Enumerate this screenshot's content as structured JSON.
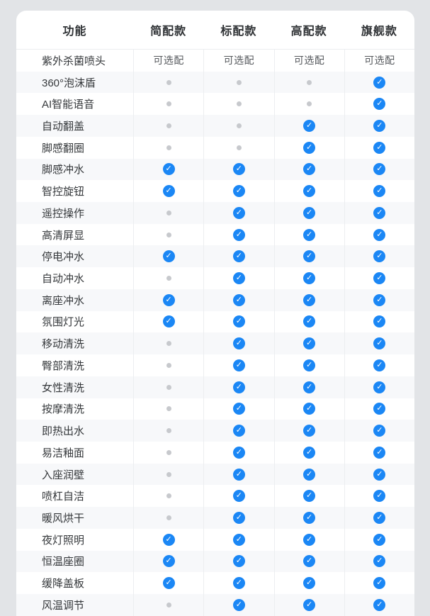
{
  "table": {
    "columns": [
      "功能",
      "简配款",
      "标配款",
      "高配款",
      "旗舰款"
    ],
    "optional_label": "可选配",
    "rows": [
      {
        "label": "紫外杀菌喷头",
        "values": [
          "可选配",
          "可选配",
          "可选配",
          "可选配"
        ]
      },
      {
        "label": "360°泡沫盾",
        "values": [
          "dot",
          "dot",
          "dot",
          "check"
        ]
      },
      {
        "label": "AI智能语音",
        "values": [
          "dot",
          "dot",
          "dot",
          "check"
        ]
      },
      {
        "label": "自动翻盖",
        "values": [
          "dot",
          "dot",
          "check",
          "check"
        ]
      },
      {
        "label": "脚感翻圈",
        "values": [
          "dot",
          "dot",
          "check",
          "check"
        ]
      },
      {
        "label": "脚感冲水",
        "values": [
          "check",
          "check",
          "check",
          "check"
        ]
      },
      {
        "label": "智控旋钮",
        "values": [
          "check",
          "check",
          "check",
          "check"
        ]
      },
      {
        "label": "遥控操作",
        "values": [
          "dot",
          "check",
          "check",
          "check"
        ]
      },
      {
        "label": "高清屏显",
        "values": [
          "dot",
          "check",
          "check",
          "check"
        ]
      },
      {
        "label": "停电冲水",
        "values": [
          "check",
          "check",
          "check",
          "check"
        ]
      },
      {
        "label": "自动冲水",
        "values": [
          "dot",
          "check",
          "check",
          "check"
        ]
      },
      {
        "label": "离座冲水",
        "values": [
          "check",
          "check",
          "check",
          "check"
        ]
      },
      {
        "label": "氛围灯光",
        "values": [
          "check",
          "check",
          "check",
          "check"
        ]
      },
      {
        "label": "移动清洗",
        "values": [
          "dot",
          "check",
          "check",
          "check"
        ]
      },
      {
        "label": "臀部清洗",
        "values": [
          "dot",
          "check",
          "check",
          "check"
        ]
      },
      {
        "label": "女性清洗",
        "values": [
          "dot",
          "check",
          "check",
          "check"
        ]
      },
      {
        "label": "按摩清洗",
        "values": [
          "dot",
          "check",
          "check",
          "check"
        ]
      },
      {
        "label": "即热出水",
        "values": [
          "dot",
          "check",
          "check",
          "check"
        ]
      },
      {
        "label": "易洁釉面",
        "values": [
          "dot",
          "check",
          "check",
          "check"
        ]
      },
      {
        "label": "入座润壁",
        "values": [
          "dot",
          "check",
          "check",
          "check"
        ]
      },
      {
        "label": "喷杠自洁",
        "values": [
          "dot",
          "check",
          "check",
          "check"
        ]
      },
      {
        "label": "暖风烘干",
        "values": [
          "dot",
          "check",
          "check",
          "check"
        ]
      },
      {
        "label": "夜灯照明",
        "values": [
          "check",
          "check",
          "check",
          "check"
        ]
      },
      {
        "label": "恒温座圈",
        "values": [
          "check",
          "check",
          "check",
          "check"
        ]
      },
      {
        "label": "缓降盖板",
        "values": [
          "check",
          "check",
          "check",
          "check"
        ]
      },
      {
        "label": "风温调节",
        "values": [
          "dot",
          "check",
          "check",
          "check"
        ]
      }
    ]
  },
  "icons": {
    "check": "✓",
    "check_meaning": "included-check-icon",
    "dot_meaning": "not-included-dot-icon"
  },
  "colors": {
    "accent_blue": "#1b87f5",
    "dot_gray": "#c7c9cd",
    "stripe_row": "#f7f8fa",
    "card_bg": "#ffffff",
    "page_bg": "#e2e4e7",
    "divider": "#eceef0",
    "header_text": "#2f3235",
    "label_text": "#35383b",
    "optional_text": "#55585c"
  }
}
